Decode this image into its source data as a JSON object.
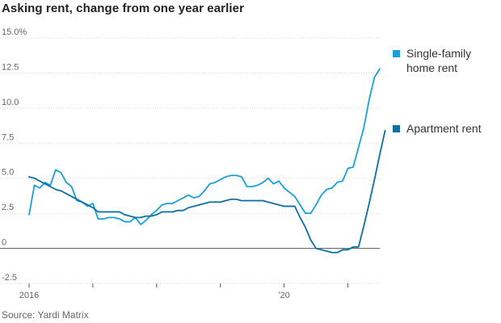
{
  "title": "Asking rent, change from one year earlier",
  "source": "Source: Yardi Matrix",
  "chart_data": {
    "type": "line",
    "title": "Asking rent, change from one year earlier",
    "xlabel": "",
    "ylabel": "",
    "ylim": [
      -2.5,
      15.0
    ],
    "xlim": [
      "2016-01",
      "2021-07"
    ],
    "y_ticks": [
      {
        "value": 15.0,
        "label": "15.0%"
      },
      {
        "value": 12.5,
        "label": "12.5"
      },
      {
        "value": 10.0,
        "label": "10.0"
      },
      {
        "value": 7.5,
        "label": "7.5"
      },
      {
        "value": 5.0,
        "label": "5.0"
      },
      {
        "value": 2.5,
        "label": "2.5"
      },
      {
        "value": 0,
        "label": "0"
      },
      {
        "value": -2.5,
        "label": "-2.5"
      }
    ],
    "x_ticks": [
      {
        "value": "2016-01",
        "label": "2016"
      },
      {
        "value": "2017-01",
        "label": ""
      },
      {
        "value": "2018-01",
        "label": ""
      },
      {
        "value": "2019-01",
        "label": ""
      },
      {
        "value": "2020-01",
        "label": "'20"
      },
      {
        "value": "2021-01",
        "label": ""
      }
    ],
    "grid": "horizontal",
    "zero_line": true,
    "legend_position": "right",
    "series": [
      {
        "name": "Single-family home rent",
        "color": "#1a9fd9",
        "points": [
          [
            "2016-01",
            2.4
          ],
          [
            "2016-02",
            4.5
          ],
          [
            "2016-03",
            4.3
          ],
          [
            "2016-04",
            4.7
          ],
          [
            "2016-05",
            4.5
          ],
          [
            "2016-06",
            5.6
          ],
          [
            "2016-07",
            5.4
          ],
          [
            "2016-08",
            4.7
          ],
          [
            "2016-09",
            4.4
          ],
          [
            "2016-10",
            3.4
          ],
          [
            "2016-11",
            3.3
          ],
          [
            "2016-12",
            3.0
          ],
          [
            "2017-01",
            3.2
          ],
          [
            "2017-02",
            2.1
          ],
          [
            "2017-03",
            2.1
          ],
          [
            "2017-04",
            2.2
          ],
          [
            "2017-05",
            2.2
          ],
          [
            "2017-06",
            2.1
          ],
          [
            "2017-07",
            1.9
          ],
          [
            "2017-08",
            1.9
          ],
          [
            "2017-09",
            2.2
          ],
          [
            "2017-10",
            1.7
          ],
          [
            "2017-11",
            2.0
          ],
          [
            "2017-12",
            2.4
          ],
          [
            "2018-01",
            2.7
          ],
          [
            "2018-02",
            3.1
          ],
          [
            "2018-03",
            3.2
          ],
          [
            "2018-04",
            3.2
          ],
          [
            "2018-05",
            3.4
          ],
          [
            "2018-06",
            3.6
          ],
          [
            "2018-07",
            3.8
          ],
          [
            "2018-08",
            3.6
          ],
          [
            "2018-09",
            3.7
          ],
          [
            "2018-10",
            4.1
          ],
          [
            "2018-11",
            4.6
          ],
          [
            "2018-12",
            4.7
          ],
          [
            "2019-01",
            4.9
          ],
          [
            "2019-02",
            5.1
          ],
          [
            "2019-03",
            5.2
          ],
          [
            "2019-04",
            5.2
          ],
          [
            "2019-05",
            5.1
          ],
          [
            "2019-06",
            4.4
          ],
          [
            "2019-07",
            4.4
          ],
          [
            "2019-08",
            4.5
          ],
          [
            "2019-09",
            4.7
          ],
          [
            "2019-10",
            5.0
          ],
          [
            "2019-11",
            4.6
          ],
          [
            "2019-12",
            4.8
          ],
          [
            "2020-01",
            4.3
          ],
          [
            "2020-02",
            4.0
          ],
          [
            "2020-03",
            3.7
          ],
          [
            "2020-04",
            3.1
          ],
          [
            "2020-05",
            2.5
          ],
          [
            "2020-06",
            2.5
          ],
          [
            "2020-07",
            3.1
          ],
          [
            "2020-08",
            3.8
          ],
          [
            "2020-09",
            4.2
          ],
          [
            "2020-10",
            4.3
          ],
          [
            "2020-11",
            4.7
          ],
          [
            "2020-12",
            4.8
          ],
          [
            "2021-01",
            5.7
          ],
          [
            "2021-02",
            5.8
          ],
          [
            "2021-03",
            7.2
          ],
          [
            "2021-04",
            8.6
          ],
          [
            "2021-05",
            10.6
          ],
          [
            "2021-06",
            12.2
          ],
          [
            "2021-07",
            12.8
          ]
        ]
      },
      {
        "name": "Apartment rent",
        "color": "#0c6fa3",
        "points": [
          [
            "2016-01",
            5.1
          ],
          [
            "2016-02",
            5.0
          ],
          [
            "2016-03",
            4.8
          ],
          [
            "2016-04",
            4.6
          ],
          [
            "2016-05",
            4.4
          ],
          [
            "2016-06",
            4.2
          ],
          [
            "2016-07",
            4.1
          ],
          [
            "2016-08",
            3.9
          ],
          [
            "2016-09",
            3.7
          ],
          [
            "2016-10",
            3.5
          ],
          [
            "2016-11",
            3.3
          ],
          [
            "2016-12",
            3.1
          ],
          [
            "2017-01",
            2.9
          ],
          [
            "2017-02",
            2.6
          ],
          [
            "2017-03",
            2.6
          ],
          [
            "2017-04",
            2.6
          ],
          [
            "2017-05",
            2.6
          ],
          [
            "2017-06",
            2.6
          ],
          [
            "2017-07",
            2.4
          ],
          [
            "2017-08",
            2.3
          ],
          [
            "2017-09",
            2.2
          ],
          [
            "2017-10",
            2.2
          ],
          [
            "2017-11",
            2.3
          ],
          [
            "2017-12",
            2.3
          ],
          [
            "2018-01",
            2.4
          ],
          [
            "2018-02",
            2.6
          ],
          [
            "2018-03",
            2.6
          ],
          [
            "2018-04",
            2.6
          ],
          [
            "2018-05",
            2.7
          ],
          [
            "2018-06",
            2.7
          ],
          [
            "2018-07",
            2.9
          ],
          [
            "2018-08",
            3.0
          ],
          [
            "2018-09",
            3.1
          ],
          [
            "2018-10",
            3.2
          ],
          [
            "2018-11",
            3.3
          ],
          [
            "2018-12",
            3.3
          ],
          [
            "2019-01",
            3.3
          ],
          [
            "2019-02",
            3.4
          ],
          [
            "2019-03",
            3.5
          ],
          [
            "2019-04",
            3.5
          ],
          [
            "2019-05",
            3.4
          ],
          [
            "2019-06",
            3.4
          ],
          [
            "2019-07",
            3.4
          ],
          [
            "2019-08",
            3.4
          ],
          [
            "2019-09",
            3.4
          ],
          [
            "2019-10",
            3.3
          ],
          [
            "2019-11",
            3.2
          ],
          [
            "2019-12",
            3.1
          ],
          [
            "2020-01",
            3.0
          ],
          [
            "2020-02",
            3.0
          ],
          [
            "2020-03",
            3.0
          ],
          [
            "2020-04",
            2.2
          ],
          [
            "2020-05",
            1.5
          ],
          [
            "2020-06",
            0.6
          ],
          [
            "2020-07",
            0.0
          ],
          [
            "2020-08",
            -0.1
          ],
          [
            "2020-09",
            -0.2
          ],
          [
            "2020-10",
            -0.3
          ],
          [
            "2020-11",
            -0.3
          ],
          [
            "2020-12",
            -0.1
          ],
          [
            "2021-01",
            -0.1
          ],
          [
            "2021-02",
            0.1
          ],
          [
            "2021-03",
            0.1
          ],
          [
            "2021-04",
            1.6
          ],
          [
            "2021-05",
            3.2
          ],
          [
            "2021-06",
            4.9
          ],
          [
            "2021-07",
            6.7
          ],
          [
            "2021-08",
            8.4
          ]
        ]
      }
    ]
  }
}
